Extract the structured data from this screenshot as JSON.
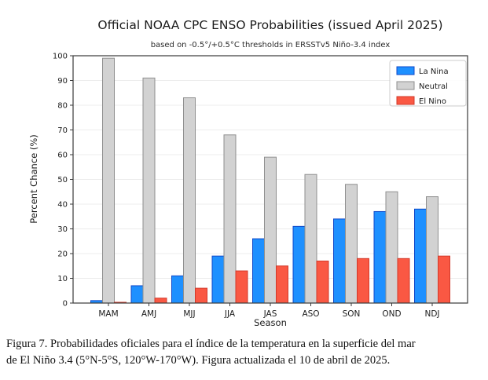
{
  "chart_data": {
    "type": "bar",
    "title": "Official NOAA CPC ENSO Probabilities (issued April 2025)",
    "subtitle": "based on -0.5°/+0.5°C thresholds in ERSSTv5 Niño-3.4 index",
    "xlabel": "Season",
    "ylabel": "Percent Chance (%)",
    "categories": [
      "MAM",
      "AMJ",
      "MJJ",
      "JJA",
      "JAS",
      "ASO",
      "SON",
      "OND",
      "NDJ"
    ],
    "series": [
      {
        "name": "La Nina",
        "values": [
          1,
          7,
          11,
          19,
          26,
          31,
          34,
          37,
          38
        ],
        "color": "#1E90FF",
        "edge_color": "#1048C8"
      },
      {
        "name": "Neutral",
        "values": [
          99,
          91,
          83,
          68,
          59,
          52,
          48,
          45,
          43
        ],
        "color": "#D2D2D2",
        "edge_color": "#8F8F8F"
      },
      {
        "name": "El Nino",
        "values": [
          0,
          2,
          6,
          13,
          15,
          17,
          18,
          18,
          19
        ],
        "color": "#FA5843",
        "edge_color": "#D2392A"
      }
    ],
    "ylim": [
      0,
      100
    ],
    "yticks": [
      0,
      10,
      20,
      30,
      40,
      50,
      60,
      70,
      80,
      90,
      100
    ],
    "grid": true,
    "grid_color": "#ECECEC",
    "spine_color": "#3A3A3A",
    "legend_position": "upper right"
  },
  "caption": {
    "lines": [
      "Figura 7. Probabilidades oficiales para el índice de la temperatura en la superficie del mar",
      "de El Niño 3.4  (5°N-5°S, 120°W-170°W). Figura actualizada el 10 de abril de 2025."
    ]
  }
}
